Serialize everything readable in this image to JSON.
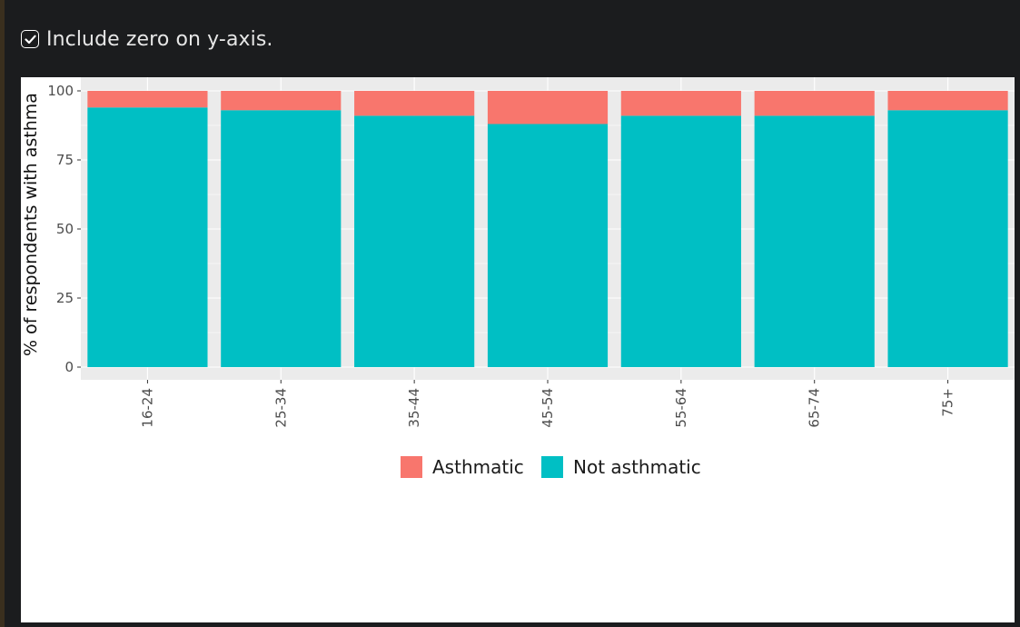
{
  "controls": {
    "include_zero_label": "Include zero on y-axis.",
    "include_zero_checked": true
  },
  "chart_data": {
    "type": "bar",
    "stacked": true,
    "categories": [
      "16-24",
      "25-34",
      "35-44",
      "45-54",
      "55-64",
      "65-74",
      "75+"
    ],
    "series": [
      {
        "name": "Asthmatic",
        "color": "#F8766D",
        "values": [
          6,
          7,
          9,
          12,
          9,
          9,
          7
        ]
      },
      {
        "name": "Not asthmatic",
        "color": "#00BFC4",
        "values": [
          94,
          93,
          91,
          88,
          91,
          91,
          93
        ]
      }
    ],
    "ylabel": "% of respondents with asthma",
    "xlabel": "",
    "ylim": [
      0,
      100
    ],
    "yticks": [
      "0",
      "25",
      "50",
      "75",
      "100"
    ],
    "grid": true,
    "legend_position": "bottom",
    "panel_background": "#EBEBEB"
  },
  "colors": {
    "app_background": "#1b1c1e",
    "plot_background": "#ffffff"
  }
}
